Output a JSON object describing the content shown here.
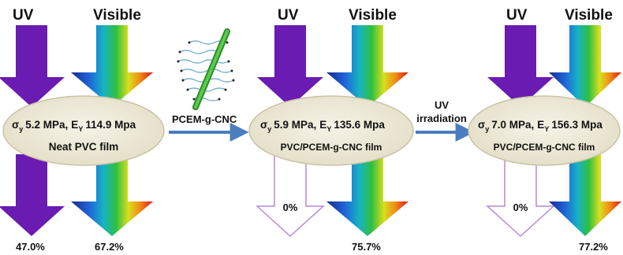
{
  "colors": {
    "uv_arrow": "#6a1bb2",
    "film_fill": "#ece8d6",
    "film_stroke": "#c9c3a6",
    "process_arrow": "#4a7ebf",
    "fiber": "#33a033",
    "chain": "#6aa6c8"
  },
  "process_labels": {
    "first": "PCEM-g-CNC",
    "second_line1": "UV",
    "second_line2": "irradiation"
  },
  "stages": [
    {
      "uv_label": "UV",
      "visible_label": "Visible",
      "sigma_symbol": "σ",
      "sigma_sub": "y",
      "sigma_value": "5.2 MPa,",
      "e_symbol": "E",
      "e_sub": "Y",
      "e_value": "114.9 Mpa",
      "film_name": "Neat PVC film",
      "uv_transmission": "47.0%",
      "visible_transmission": "67.2%",
      "uv_blocked": false
    },
    {
      "uv_label": "UV",
      "visible_label": "Visible",
      "sigma_symbol": "σ",
      "sigma_sub": "y",
      "sigma_value": "5.9 MPa,",
      "e_symbol": "E",
      "e_sub": "Y",
      "e_value": "135.6 Mpa",
      "film_name": "PVC/PCEM-g-CNC film",
      "uv_transmission": "0%",
      "visible_transmission": "75.7%",
      "uv_blocked": true
    },
    {
      "uv_label": "UV",
      "visible_label": "Visible",
      "sigma_symbol": "σ",
      "sigma_sub": "y",
      "sigma_value": "7.0 MPa,",
      "e_symbol": "E",
      "e_sub": "Y",
      "e_value": "156.3 Mpa",
      "film_name": "PVC/PCEM-g-CNC film",
      "uv_transmission": "0%",
      "visible_transmission": "77.2%",
      "uv_blocked": true
    }
  ]
}
